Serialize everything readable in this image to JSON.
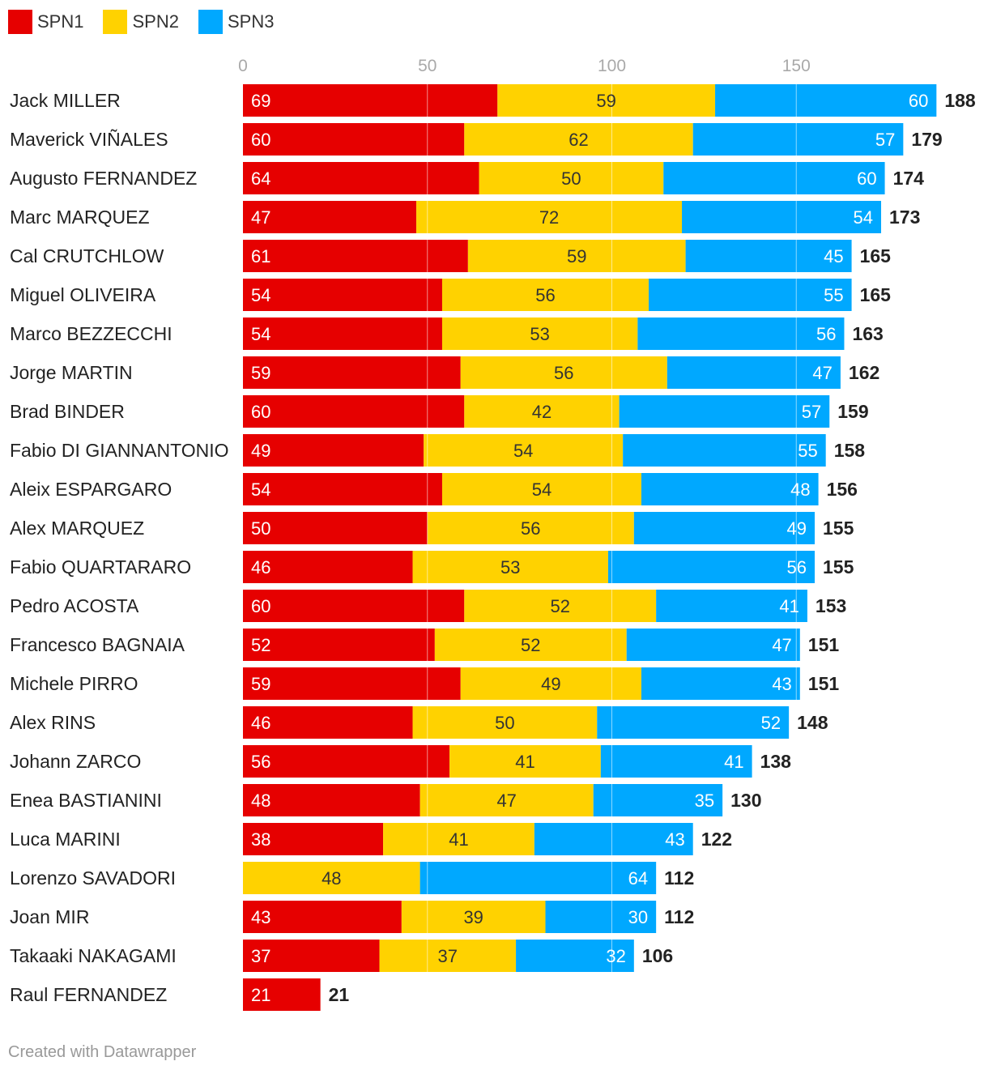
{
  "legend": [
    {
      "name": "SPN1",
      "color": "#e60000"
    },
    {
      "name": "SPN2",
      "color": "#ffd200"
    },
    {
      "name": "SPN3",
      "color": "#00a8ff"
    }
  ],
  "footer": {
    "credit": "Created with Datawrapper"
  },
  "chart_data": {
    "type": "bar",
    "orientation": "horizontal",
    "stacked": true,
    "xlim": [
      0,
      190
    ],
    "x_ticks": [
      0,
      50,
      100,
      150
    ],
    "grid": true,
    "legend_position": "top-left",
    "categories": [
      "Jack MILLER",
      "Maverick VIÑALES",
      "Augusto FERNANDEZ",
      "Marc MARQUEZ",
      "Cal CRUTCHLOW",
      "Miguel OLIVEIRA",
      "Marco BEZZECCHI",
      "Jorge MARTIN",
      "Brad BINDER",
      "Fabio DI GIANNANTONIO",
      "Aleix ESPARGARO",
      "Alex MARQUEZ",
      "Fabio QUARTARARO",
      "Pedro ACOSTA",
      "Francesco BAGNAIA",
      "Michele PIRRO",
      "Alex RINS",
      "Johann ZARCO",
      "Enea BASTIANINI",
      "Luca MARINI",
      "Lorenzo SAVADORI",
      "Joan MIR",
      "Takaaki NAKAGAMI",
      "Raul FERNANDEZ"
    ],
    "series": [
      {
        "name": "SPN1",
        "color": "#e60000",
        "label_color": "#ffffff",
        "values": [
          69,
          60,
          64,
          47,
          61,
          54,
          54,
          59,
          60,
          49,
          54,
          50,
          46,
          60,
          52,
          59,
          46,
          56,
          48,
          38,
          null,
          43,
          37,
          21
        ]
      },
      {
        "name": "SPN2",
        "color": "#ffd200",
        "label_color": "#333333",
        "values": [
          59,
          62,
          50,
          72,
          59,
          56,
          53,
          56,
          42,
          54,
          54,
          56,
          53,
          52,
          52,
          49,
          50,
          41,
          47,
          41,
          48,
          39,
          37,
          null
        ]
      },
      {
        "name": "SPN3",
        "color": "#00a8ff",
        "label_color": "#ffffff",
        "values": [
          60,
          57,
          60,
          54,
          45,
          55,
          56,
          47,
          57,
          55,
          48,
          49,
          56,
          41,
          47,
          43,
          52,
          41,
          35,
          43,
          64,
          30,
          32,
          null
        ]
      }
    ],
    "totals": [
      188,
      179,
      174,
      173,
      165,
      165,
      163,
      162,
      159,
      158,
      156,
      155,
      155,
      153,
      151,
      151,
      148,
      138,
      130,
      122,
      112,
      112,
      106,
      21
    ]
  }
}
